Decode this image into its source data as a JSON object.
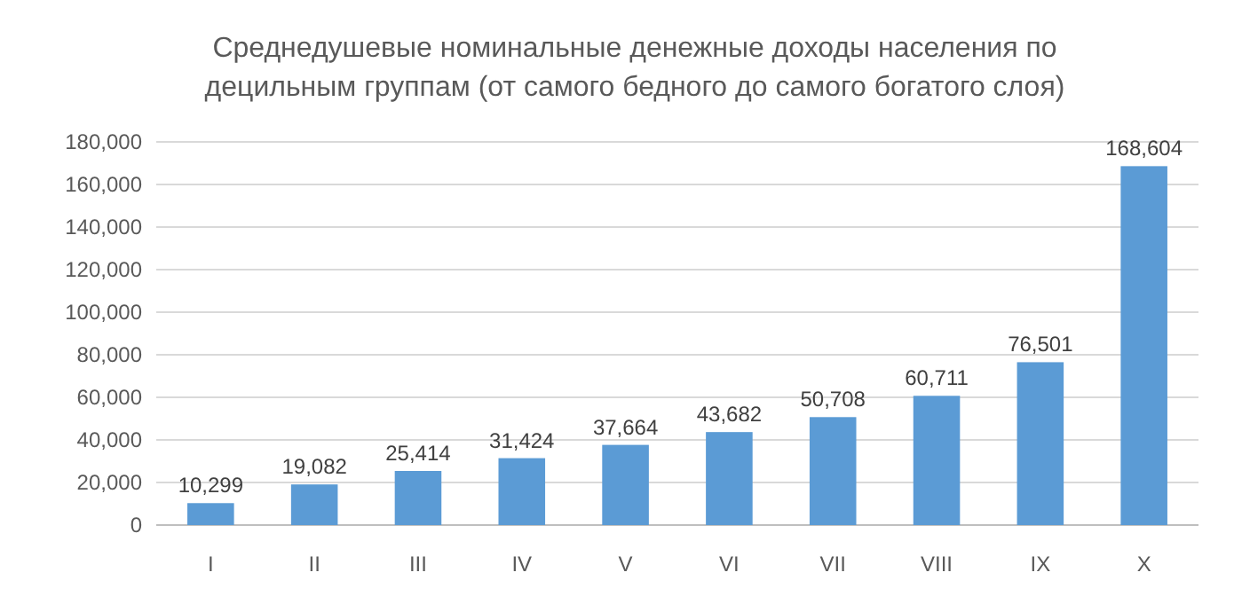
{
  "chart_data": {
    "type": "bar",
    "title": "Среднедушевые номинальные денежные доходы населения по\nдецильным группам (от самого бедного до самого богатого слоя)",
    "categories": [
      "I",
      "II",
      "III",
      "IV",
      "V",
      "VI",
      "VII",
      "VIII",
      "IX",
      "X"
    ],
    "values": [
      10299,
      19082,
      25414,
      31424,
      37664,
      43682,
      50708,
      60711,
      76501,
      168604
    ],
    "value_labels": [
      "10,299",
      "19,082",
      "25,414",
      "31,424",
      "37,664",
      "43,682",
      "50,708",
      "60,711",
      "76,501",
      "168,604"
    ],
    "color": "#5b9bd5",
    "grid": "y",
    "ylim": [
      0,
      180000
    ],
    "yticks": [
      {
        "value": 0,
        "label": "0"
      },
      {
        "value": 20000,
        "label": "20,000"
      },
      {
        "value": 40000,
        "label": "40,000"
      },
      {
        "value": 60000,
        "label": "60,000"
      },
      {
        "value": 80000,
        "label": "80,000"
      },
      {
        "value": 100000,
        "label": "100,000"
      },
      {
        "value": 120000,
        "label": "120,000"
      },
      {
        "value": 140000,
        "label": "140,000"
      },
      {
        "value": 160000,
        "label": "160,000"
      },
      {
        "value": 180000,
        "label": "180,000"
      }
    ]
  }
}
